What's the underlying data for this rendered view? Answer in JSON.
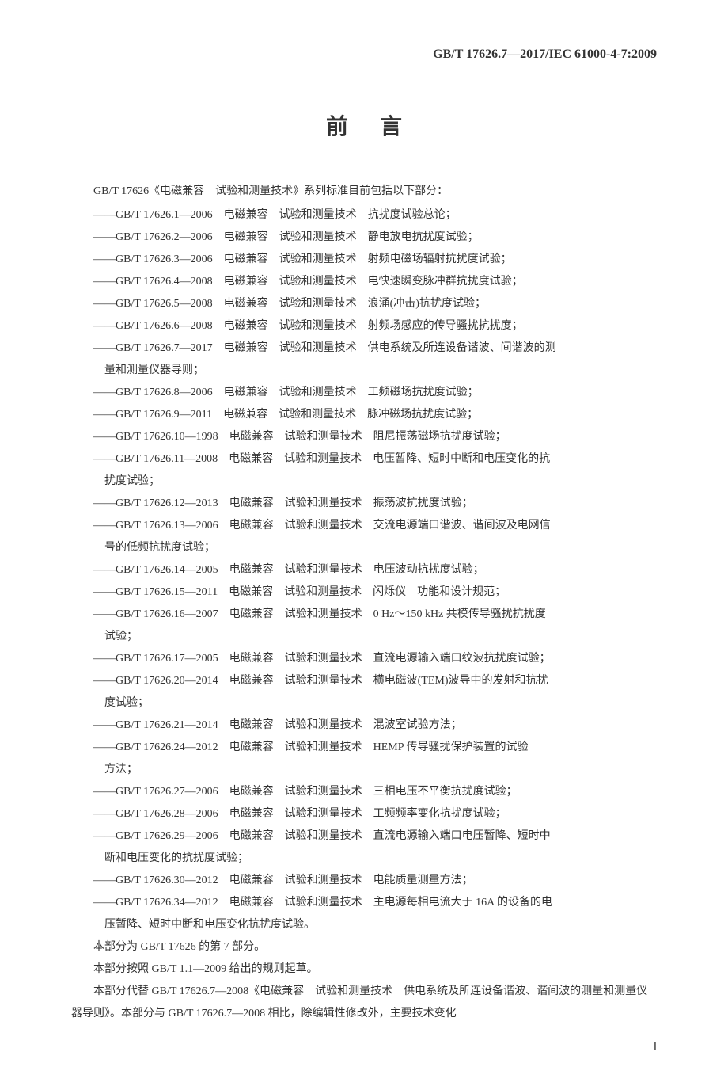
{
  "header": {
    "standard_id": "GB/T 17626.7—2017/IEC 61000-4-7:2009"
  },
  "title": "前言",
  "intro": "GB/T 17626《电磁兼容　试验和测量技术》系列标准目前包括以下部分：",
  "items": [
    {
      "code": "——GB/T 17626.1—2006",
      "col2": "电磁兼容",
      "col3": "试验和测量技术",
      "desc": "抗扰度试验总论；"
    },
    {
      "code": "——GB/T 17626.2—2006",
      "col2": "电磁兼容",
      "col3": "试验和测量技术",
      "desc": "静电放电抗扰度试验；"
    },
    {
      "code": "——GB/T 17626.3—2006",
      "col2": "电磁兼容",
      "col3": "试验和测量技术",
      "desc": "射频电磁场辐射抗扰度试验；"
    },
    {
      "code": "——GB/T 17626.4—2008",
      "col2": "电磁兼容",
      "col3": "试验和测量技术",
      "desc": "电快速瞬变脉冲群抗扰度试验；"
    },
    {
      "code": "——GB/T 17626.5—2008",
      "col2": "电磁兼容",
      "col3": "试验和测量技术",
      "desc": "浪涌(冲击)抗扰度试验；"
    },
    {
      "code": "——GB/T 17626.6—2008",
      "col2": "电磁兼容",
      "col3": "试验和测量技术",
      "desc": "射频场感应的传导骚扰抗扰度；"
    },
    {
      "code": "——GB/T 17626.7—2017",
      "col2": "电磁兼容",
      "col3": "试验和测量技术",
      "desc": "供电系统及所连设备谐波、间谐波的测",
      "cont": "量和测量仪器导则；"
    },
    {
      "code": "——GB/T 17626.8—2006",
      "col2": "电磁兼容",
      "col3": "试验和测量技术",
      "desc": "工频磁场抗扰度试验；"
    },
    {
      "code": "——GB/T 17626.9—2011",
      "col2": "电磁兼容",
      "col3": "试验和测量技术",
      "desc": "脉冲磁场抗扰度试验；"
    },
    {
      "code": "——GB/T 17626.10—1998",
      "col2": "电磁兼容",
      "col3": "试验和测量技术",
      "desc": "阻尼振荡磁场抗扰度试验；"
    },
    {
      "code": "——GB/T 17626.11—2008",
      "col2": "电磁兼容",
      "col3": "试验和测量技术",
      "desc": "电压暂降、短时中断和电压变化的抗",
      "cont": "扰度试验；"
    },
    {
      "code": "——GB/T 17626.12—2013",
      "col2": "电磁兼容",
      "col3": "试验和测量技术",
      "desc": "振荡波抗扰度试验；"
    },
    {
      "code": "——GB/T 17626.13—2006",
      "col2": "电磁兼容",
      "col3": "试验和测量技术",
      "desc": "交流电源端口谐波、谐间波及电网信",
      "cont": "号的低频抗扰度试验；"
    },
    {
      "code": "——GB/T 17626.14—2005",
      "col2": "电磁兼容",
      "col3": "试验和测量技术",
      "desc": "电压波动抗扰度试验；"
    },
    {
      "code": "——GB/T 17626.15—2011",
      "col2": "电磁兼容",
      "col3": "试验和测量技术",
      "desc": "闪烁仪　功能和设计规范；"
    },
    {
      "code": "——GB/T 17626.16—2007",
      "col2": "电磁兼容",
      "col3": "试验和测量技术",
      "desc": "0 Hz～150 kHz 共模传导骚扰抗扰度",
      "cont": "试验；"
    },
    {
      "code": "——GB/T 17626.17—2005",
      "col2": "电磁兼容",
      "col3": "试验和测量技术",
      "desc": "直流电源输入端口纹波抗扰度试验；"
    },
    {
      "code": "——GB/T 17626.20—2014",
      "col2": "电磁兼容",
      "col3": "试验和测量技术",
      "desc": "横电磁波(TEM)波导中的发射和抗扰",
      "cont": "度试验；"
    },
    {
      "code": "——GB/T 17626.21—2014",
      "col2": "电磁兼容",
      "col3": "试验和测量技术",
      "desc": "混波室试验方法；"
    },
    {
      "code": "——GB/T 17626.24—2012",
      "col2": "电磁兼容",
      "col3": "试验和测量技术",
      "desc": "HEMP 传导骚扰保护装置的试验",
      "cont": "方法；"
    },
    {
      "code": "——GB/T 17626.27—2006",
      "col2": "电磁兼容",
      "col3": "试验和测量技术",
      "desc": "三相电压不平衡抗扰度试验；"
    },
    {
      "code": "——GB/T 17626.28—2006",
      "col2": "电磁兼容",
      "col3": "试验和测量技术",
      "desc": "工频频率变化抗扰度试验；"
    },
    {
      "code": "——GB/T 17626.29—2006",
      "col2": "电磁兼容",
      "col3": "试验和测量技术",
      "desc": "直流电源输入端口电压暂降、短时中",
      "cont": "断和电压变化的抗扰度试验；"
    },
    {
      "code": "——GB/T 17626.30—2012",
      "col2": "电磁兼容",
      "col3": "试验和测量技术",
      "desc": "电能质量测量方法；"
    },
    {
      "code": "——GB/T 17626.34—2012",
      "col2": "电磁兼容",
      "col3": "试验和测量技术",
      "desc": "主电源每相电流大于 16A 的设备的电",
      "cont": "压暂降、短时中断和电压变化抗扰度试验。"
    }
  ],
  "paragraphs": [
    "本部分为 GB/T 17626 的第 7 部分。",
    "本部分按照 GB/T 1.1—2009 给出的规则起草。",
    "本部分代替 GB/T 17626.7—2008《电磁兼容　试验和测量技术　供电系统及所连设备谐波、谐间波的测量和测量仪器导则》。本部分与 GB/T 17626.7—2008 相比，除编辑性修改外，主要技术变化"
  ],
  "page_number": "Ⅰ"
}
